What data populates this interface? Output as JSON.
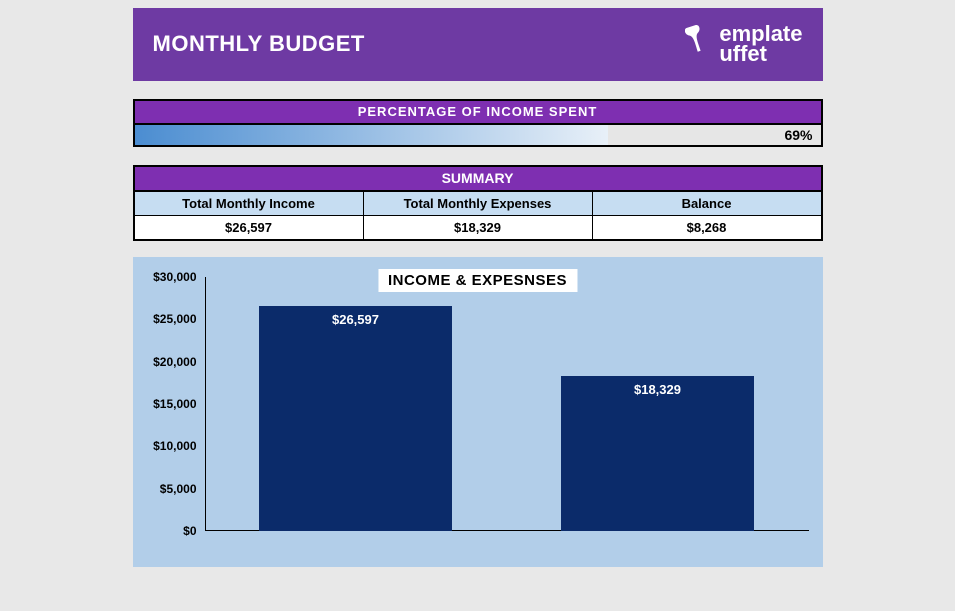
{
  "header": {
    "title": "MONTHLY BUDGET",
    "logo_top": "emplate",
    "logo_bottom": "uffet",
    "bg_color": "#6e3aa3"
  },
  "percentage": {
    "title": "PERCENTAGE OF INCOME SPENT",
    "header_bg": "#7e2fb1",
    "value": 69,
    "label": "69%",
    "fill_gradient_from": "#4b8dd1",
    "fill_gradient_to": "#e8f0f8",
    "empty_color": "#e6e6e6"
  },
  "summary": {
    "title": "SUMMARY",
    "header_bg": "#7e2fb1",
    "col_header_bg": "#c6ddf2",
    "columns": [
      {
        "label": "Total Monthly Income",
        "value": "$26,597"
      },
      {
        "label": "Total Monthly Expenses",
        "value": "$18,329"
      },
      {
        "label": "Balance",
        "value": "$8,268"
      }
    ]
  },
  "chart": {
    "title": "INCOME & EXPESNSES",
    "background_color": "#b2cee9",
    "bar_color": "#0b2b6a",
    "type": "bar",
    "ylim": [
      0,
      30000
    ],
    "yticks": [
      {
        "v": 0,
        "label": "$0"
      },
      {
        "v": 5000,
        "label": "$5,000"
      },
      {
        "v": 10000,
        "label": "$10,000"
      },
      {
        "v": 15000,
        "label": "$15,000"
      },
      {
        "v": 20000,
        "label": "$20,000"
      },
      {
        "v": 25000,
        "label": "$25,000"
      },
      {
        "v": 30000,
        "label": "$30,000"
      }
    ],
    "bars": [
      {
        "value": 26597,
        "label": "$26,597"
      },
      {
        "value": 18329,
        "label": "$18,329"
      }
    ]
  }
}
